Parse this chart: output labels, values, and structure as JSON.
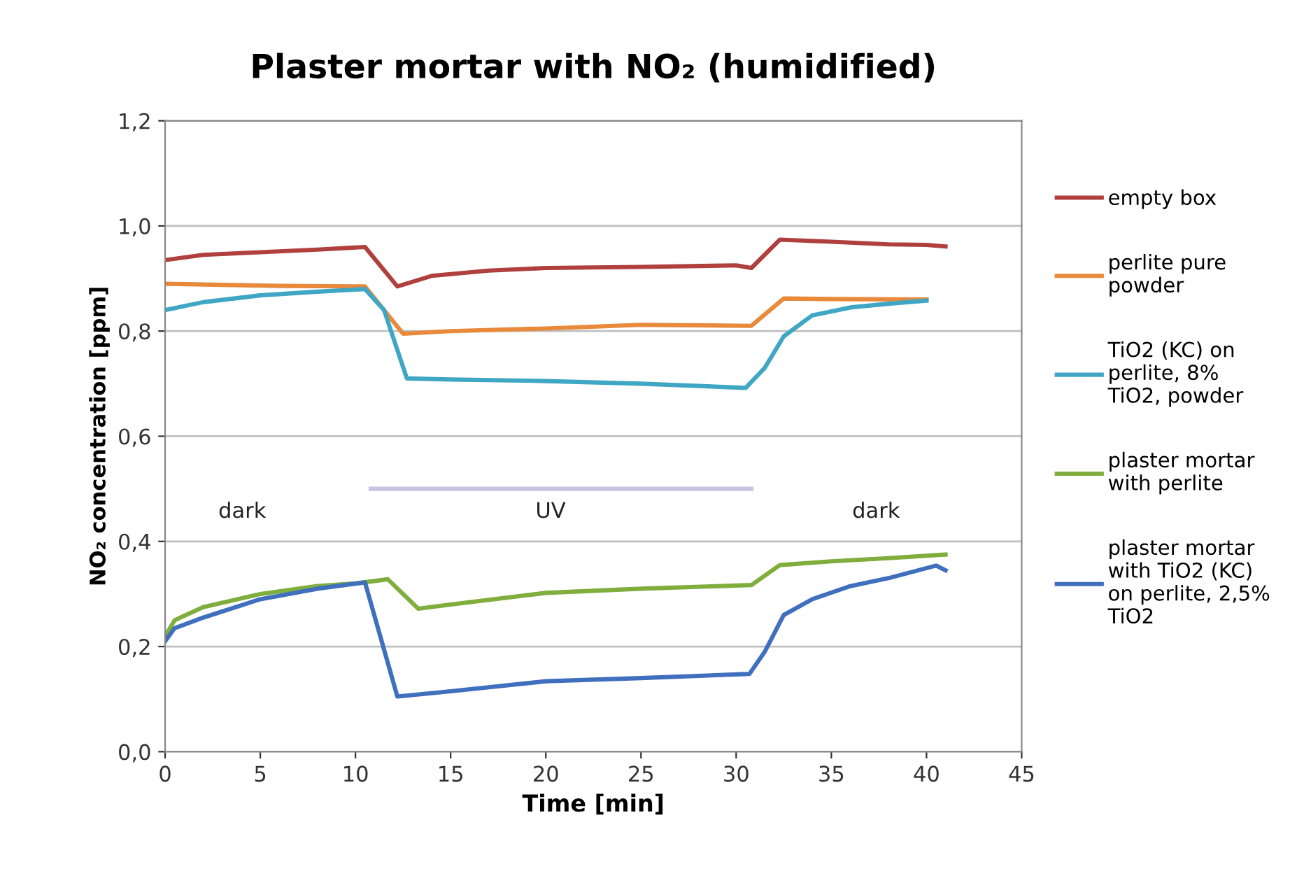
{
  "chart_data": {
    "type": "line",
    "title": "Plaster mortar with NO₂ (humidified)",
    "xlabel": "Time [min]",
    "ylabel": "NO₂ concentration [ppm]",
    "xlim": [
      0,
      45
    ],
    "xticks": [
      0,
      5,
      10,
      15,
      20,
      25,
      30,
      35,
      40,
      45
    ],
    "ylim": [
      0,
      1.2
    ],
    "yticks": [
      {
        "value": 0,
        "label": "0,0"
      },
      {
        "value": 0.2,
        "label": "0,2"
      },
      {
        "value": 0.4,
        "label": "0,4"
      },
      {
        "value": 0.6,
        "label": "0,6"
      },
      {
        "value": 0.8,
        "label": "0,8"
      },
      {
        "value": 1.0,
        "label": "1,0"
      },
      {
        "value": 1.2,
        "label": "1,2"
      }
    ],
    "grid": "y",
    "legend": "right",
    "marker": "none",
    "line_style": "solid",
    "series": [
      {
        "name": "empty box",
        "color": "#b0403d",
        "x": [
          0,
          2,
          5,
          8,
          10.5,
          12.2,
          14,
          17,
          20,
          25,
          30,
          30.8,
          32.3,
          35,
          38,
          40,
          41
        ],
        "values": [
          0.935,
          0.945,
          0.95,
          0.955,
          0.96,
          0.885,
          0.905,
          0.915,
          0.92,
          0.922,
          0.925,
          0.92,
          0.974,
          0.97,
          0.965,
          0.964,
          0.961
        ]
      },
      {
        "name": "perlite pure powder",
        "color": "#e88a3c",
        "x": [
          0,
          3,
          6,
          10.5,
          12.5,
          15,
          20,
          25,
          30.8,
          32.5,
          35,
          40
        ],
        "values": [
          0.89,
          0.888,
          0.886,
          0.885,
          0.795,
          0.8,
          0.805,
          0.812,
          0.81,
          0.862,
          0.861,
          0.86
        ]
      },
      {
        "name": "TiO2 (KC) on perlite, 8% TiO2, powder",
        "color": "#3fa7c4",
        "x": [
          0,
          2,
          5,
          8,
          10.5,
          11.5,
          12.7,
          15,
          20,
          25,
          30.5,
          31.5,
          32.5,
          34,
          36,
          38,
          40
        ],
        "values": [
          0.84,
          0.855,
          0.868,
          0.875,
          0.88,
          0.84,
          0.71,
          0.708,
          0.705,
          0.7,
          0.692,
          0.73,
          0.79,
          0.83,
          0.845,
          0.852,
          0.858
        ]
      },
      {
        "name": "plaster mortar with perlite",
        "color": "#7fae3c",
        "x": [
          0,
          0.5,
          2,
          5,
          8,
          10,
          11.7,
          13.3,
          15,
          20,
          25,
          30.8,
          32.3,
          35,
          38,
          41
        ],
        "values": [
          0.22,
          0.25,
          0.275,
          0.3,
          0.315,
          0.32,
          0.328,
          0.272,
          0.28,
          0.302,
          0.31,
          0.317,
          0.355,
          0.362,
          0.368,
          0.375
        ]
      },
      {
        "name": "plaster mortar with TiO2 (KC) on perlite, 2,5% TiO2",
        "color": "#3f6fbd",
        "x": [
          0,
          0.5,
          2,
          5,
          8,
          10.5,
          12.2,
          15,
          20,
          25,
          30.7,
          31.5,
          32.5,
          34,
          36,
          38,
          40.5,
          41
        ],
        "values": [
          0.21,
          0.235,
          0.255,
          0.29,
          0.31,
          0.322,
          0.105,
          0.115,
          0.134,
          0.14,
          0.148,
          0.19,
          0.26,
          0.29,
          0.315,
          0.33,
          0.354,
          0.345
        ]
      },
      {
        "color": "#c9c3e3",
        "x": [
          10.8,
          30.8
        ],
        "values": [
          0.5,
          0.5
        ]
      }
    ],
    "annotations": [
      "dark",
      "UV",
      "dark"
    ]
  }
}
